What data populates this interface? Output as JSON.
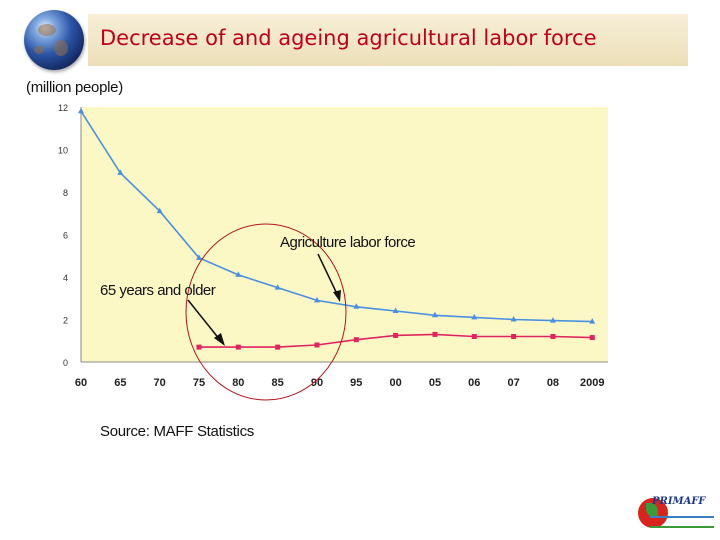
{
  "header": {
    "title": "Decrease of and ageing agricultural labor force"
  },
  "chart_data": {
    "type": "line",
    "ylabel": "(million people)",
    "categories": [
      "60",
      "65",
      "70",
      "75",
      "80",
      "85",
      "90",
      "95",
      "00",
      "05",
      "06",
      "07",
      "08",
      "2009"
    ],
    "ylim": [
      0,
      12
    ],
    "yticks": [
      "0",
      "2",
      "4",
      "6",
      "8",
      "10",
      "12"
    ],
    "grid": false,
    "series": [
      {
        "name": "Agriculture labor force",
        "color": "#4a90e2",
        "marker": "triangle",
        "values": [
          11.8,
          8.9,
          7.1,
          4.9,
          4.1,
          3.5,
          2.9,
          2.6,
          2.4,
          2.2,
          2.1,
          2.0,
          1.95,
          1.9
        ]
      },
      {
        "name": "65 years and older",
        "color": "#e0245e",
        "marker": "square",
        "values": [
          null,
          null,
          null,
          0.7,
          0.7,
          0.7,
          0.8,
          1.05,
          1.25,
          1.3,
          1.2,
          1.2,
          1.2,
          1.15
        ]
      }
    ],
    "annotations": [
      "Agriculture labor force",
      "65 years and older"
    ],
    "source": "Source: MAFF Statistics",
    "plot_color": "#fbf8c6"
  },
  "logo": {
    "name": "PRIMAFF"
  }
}
